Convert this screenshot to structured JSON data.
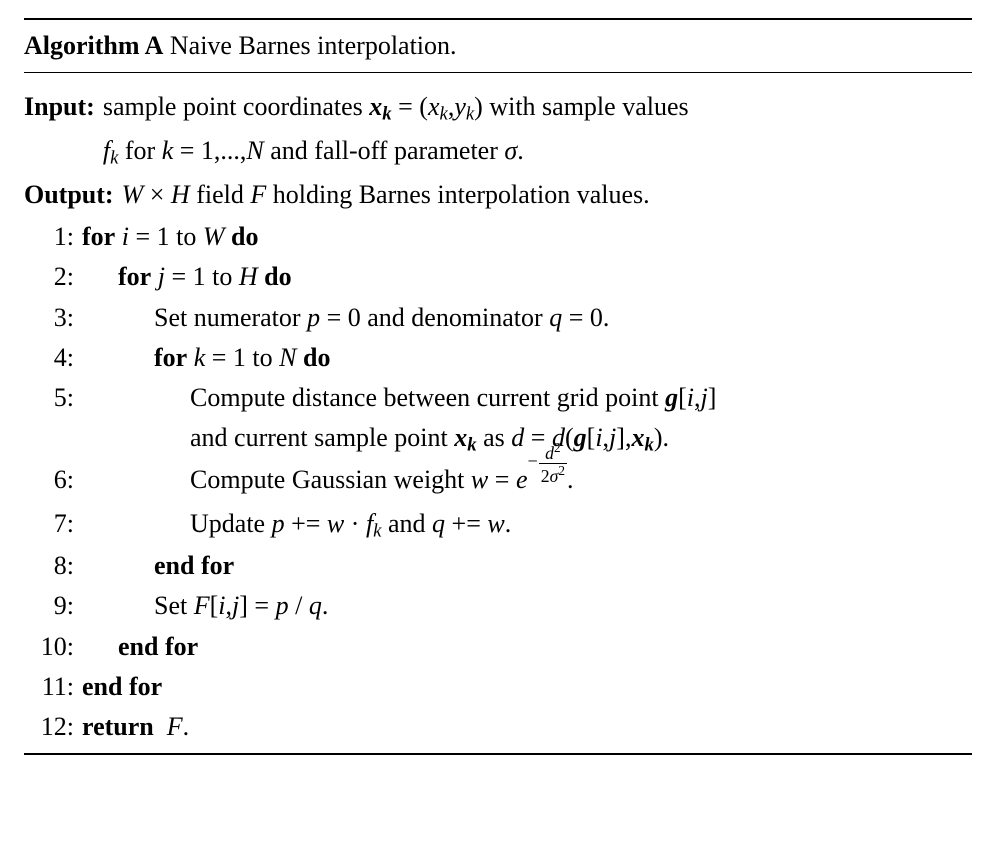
{
  "title_prefix": "Algorithm A",
  "title_text": "Naive Barnes interpolation.",
  "input_label": "Input:",
  "output_label": "Output:",
  "input_line1": "sample point coordinates {xk_bold} = ({xk},{yk}) with sample values",
  "input_line2": "{fk} for {k} = 1,...,{N} and fall-off parameter {sigma}.",
  "output_text": "{W} × {H} field {F} holding Barnes interpolation values.",
  "steps": [
    {
      "n": "1:",
      "depth": 1,
      "bold_open": "for",
      "mid": " {i} = 1 to {W} ",
      "bold_close": "do"
    },
    {
      "n": "2:",
      "depth": 2,
      "bold_open": "for",
      "mid": " {j} = 1 to {H} ",
      "bold_close": "do"
    },
    {
      "n": "3:",
      "depth": 3,
      "text": "Set numerator {p} = 0 and denominator {q} = 0."
    },
    {
      "n": "4:",
      "depth": 3,
      "bold_open": "for",
      "mid": " {k} = 1 to {N} ",
      "bold_close": "do"
    },
    {
      "n": "5:",
      "depth": 4,
      "multiline": true,
      "l1": "Compute distance between current grid point {g_ij}",
      "l2": "and current sample point {xk_bold} as {d} = {d}({g_ij},{xk_bold})."
    },
    {
      "n": "6:",
      "depth": 4,
      "is_gaussian": true,
      "prefix": "Compute Gaussian weight ",
      "w": "w",
      "eq": " = ",
      "e": "e",
      "exp_num": "d",
      "exp_den_a": "2",
      "exp_den_b": "σ",
      "suffix": "."
    },
    {
      "n": "7:",
      "depth": 4,
      "text": "Update {p} += {w} · {fk} and {q} += {w}."
    },
    {
      "n": "8:",
      "depth": 3,
      "bold_open": "end for"
    },
    {
      "n": "9:",
      "depth": 3,
      "text": "Set {F}[{i},{j}] = {p} / {q}."
    },
    {
      "n": "10:",
      "depth": 2,
      "bold_open": "end for"
    },
    {
      "n": "11:",
      "depth": 1,
      "bold_open": "end for"
    },
    {
      "n": "12:",
      "depth": 1,
      "bold_open": "return",
      "mid": "  {F}."
    }
  ],
  "sym": {
    "xk_bold": "x<sub class='sub'><b>k</b></sub>",
    "xk": "x<sub class='sub'>k</sub>",
    "yk": "y<sub class='sub'>k</sub>",
    "fk": "f<sub class='sub'>k</sub>",
    "k": "k",
    "N": "N",
    "sigma": "σ",
    "W": "W",
    "H": "H",
    "F": "F",
    "i": "i",
    "j": "j",
    "p": "p",
    "q": "q",
    "d": "d",
    "w": "w",
    "e": "e",
    "g_ij": "g[i,j]"
  },
  "colors": {
    "text": "#000000",
    "background": "#ffffff",
    "rule": "#000000"
  },
  "fontsize_body_pt": 20,
  "fontsize_sub_scale": 0.72
}
